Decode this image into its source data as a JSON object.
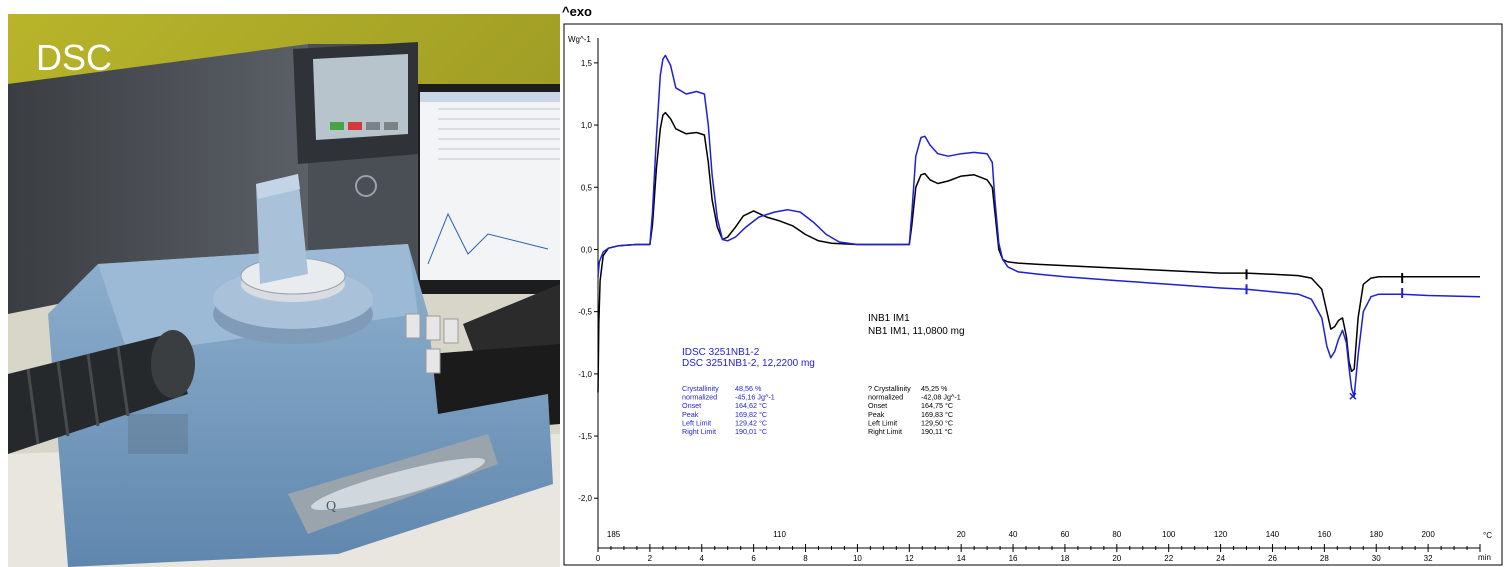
{
  "photo": {
    "label": "DSC",
    "instrument_badge": "Q"
  },
  "chart_data": {
    "type": "line",
    "title": "^exo",
    "ylabel": "Wg^-1",
    "xlabel": "min",
    "temp_unit_label": "°C",
    "xlim": [
      0,
      34
    ],
    "ylim": [
      -2.4,
      1.7
    ],
    "grid": false,
    "y_ticks": [
      1.5,
      1.0,
      0.5,
      0.0,
      -0.5,
      -1.0,
      -1.5,
      -2.0
    ],
    "y_tick_labels": [
      "1,5",
      "1,0",
      "0,5",
      "0,0",
      "-0,5",
      "-1,0",
      "-1,5",
      "-2,0"
    ],
    "x_ticks": [
      0,
      2,
      4,
      6,
      8,
      10,
      12,
      14,
      16,
      18,
      20,
      22,
      24,
      26,
      28,
      30,
      32
    ],
    "x_tick_labels": [
      "0",
      "2",
      "4",
      "6",
      "8",
      "10",
      "12",
      "14",
      "16",
      "18",
      "20",
      "22",
      "24",
      "26",
      "28",
      "30",
      "32"
    ],
    "temp_ticks": [
      {
        "x": 0.6,
        "label": "185"
      },
      {
        "x": 7.0,
        "label": "110"
      },
      {
        "x": 14.0,
        "label": "20"
      },
      {
        "x": 16.0,
        "label": "40"
      },
      {
        "x": 18.0,
        "label": "60"
      },
      {
        "x": 20.0,
        "label": "80"
      },
      {
        "x": 22.0,
        "label": "100"
      },
      {
        "x": 24.0,
        "label": "120"
      },
      {
        "x": 26.0,
        "label": "140"
      },
      {
        "x": 28.0,
        "label": "160"
      },
      {
        "x": 30.0,
        "label": "180"
      },
      {
        "x": 32.0,
        "label": "200"
      }
    ],
    "series": [
      {
        "name": "DSC 3251NB1-2, 12,2200 mg",
        "color": "#1f1fd6",
        "x": [
          0,
          0.05,
          0.2,
          0.4,
          0.8,
          1.5,
          2.0,
          2.1,
          2.25,
          2.4,
          2.5,
          2.6,
          2.8,
          3.0,
          3.4,
          3.8,
          4.1,
          4.25,
          4.4,
          4.6,
          4.8,
          5.0,
          5.3,
          5.7,
          6.2,
          6.8,
          7.3,
          7.8,
          8.3,
          8.8,
          9.3,
          10.0,
          11.0,
          12.0,
          12.1,
          12.25,
          12.45,
          12.6,
          12.8,
          13.1,
          13.5,
          14.0,
          14.5,
          15.0,
          15.2,
          15.3,
          15.45,
          15.6,
          15.8,
          16.2,
          17.0,
          18.0,
          20.0,
          22.0,
          24.0,
          25.0,
          26.0,
          27.0,
          27.5,
          27.9,
          28.1,
          28.25,
          28.4,
          28.55,
          28.7,
          28.85,
          28.95,
          29.05,
          29.15,
          29.3,
          29.5,
          29.8,
          30.1,
          30.5,
          31.0,
          32.0,
          34.0
        ],
        "y": [
          -0.22,
          -0.1,
          -0.02,
          0.01,
          0.03,
          0.04,
          0.04,
          0.3,
          0.9,
          1.4,
          1.53,
          1.56,
          1.48,
          1.3,
          1.25,
          1.27,
          1.25,
          1.0,
          0.6,
          0.25,
          0.08,
          0.07,
          0.1,
          0.18,
          0.26,
          0.3,
          0.32,
          0.3,
          0.22,
          0.12,
          0.06,
          0.04,
          0.04,
          0.04,
          0.3,
          0.75,
          0.9,
          0.91,
          0.84,
          0.77,
          0.75,
          0.77,
          0.78,
          0.77,
          0.7,
          0.4,
          0.05,
          -0.08,
          -0.14,
          -0.18,
          -0.2,
          -0.22,
          -0.25,
          -0.28,
          -0.31,
          -0.32,
          -0.34,
          -0.36,
          -0.4,
          -0.55,
          -0.78,
          -0.87,
          -0.82,
          -0.72,
          -0.65,
          -0.75,
          -0.95,
          -1.12,
          -1.18,
          -0.85,
          -0.5,
          -0.38,
          -0.36,
          -0.36,
          -0.36,
          -0.37,
          -0.38
        ]
      },
      {
        "name": "NB1 IM1, 11,0800 mg",
        "color": "#000000",
        "x": [
          0,
          0.03,
          0.08,
          0.2,
          0.4,
          0.8,
          1.5,
          2.0,
          2.1,
          2.25,
          2.4,
          2.5,
          2.6,
          2.8,
          3.0,
          3.4,
          3.8,
          4.1,
          4.25,
          4.4,
          4.6,
          4.8,
          5.0,
          5.3,
          5.6,
          6.0,
          6.5,
          7.0,
          7.5,
          8.0,
          8.5,
          9.0,
          10.0,
          11.0,
          12.0,
          12.1,
          12.25,
          12.45,
          12.6,
          12.8,
          13.1,
          13.5,
          14.0,
          14.5,
          15.0,
          15.2,
          15.3,
          15.45,
          15.6,
          15.8,
          16.2,
          17.0,
          18.0,
          20.0,
          22.0,
          24.0,
          25.0,
          26.0,
          27.0,
          27.5,
          27.9,
          28.1,
          28.25,
          28.4,
          28.55,
          28.7,
          28.85,
          28.95,
          29.05,
          29.15,
          29.3,
          29.5,
          29.8,
          30.1,
          30.5,
          31.0,
          32.0,
          34.0
        ],
        "y": [
          -1.15,
          -0.6,
          -0.25,
          -0.05,
          0.01,
          0.03,
          0.04,
          0.04,
          0.2,
          0.65,
          0.97,
          1.08,
          1.1,
          1.05,
          0.97,
          0.93,
          0.94,
          0.92,
          0.7,
          0.4,
          0.18,
          0.08,
          0.1,
          0.18,
          0.27,
          0.31,
          0.26,
          0.23,
          0.19,
          0.12,
          0.07,
          0.05,
          0.04,
          0.04,
          0.04,
          0.2,
          0.5,
          0.6,
          0.61,
          0.56,
          0.53,
          0.55,
          0.59,
          0.6,
          0.56,
          0.5,
          0.3,
          0.0,
          -0.08,
          -0.1,
          -0.11,
          -0.12,
          -0.13,
          -0.15,
          -0.17,
          -0.19,
          -0.19,
          -0.2,
          -0.21,
          -0.23,
          -0.32,
          -0.5,
          -0.64,
          -0.62,
          -0.57,
          -0.55,
          -0.7,
          -0.9,
          -0.98,
          -0.96,
          -0.55,
          -0.28,
          -0.23,
          -0.22,
          -0.22,
          -0.22,
          -0.22,
          -0.22
        ]
      }
    ],
    "marker_pairs": [
      {
        "x": [
          25,
          31
        ],
        "y_blue": [
          -0.32,
          -0.35
        ],
        "y_black": [
          -0.2,
          -0.23
        ]
      }
    ],
    "peak_markers": [
      {
        "x": 29.1,
        "y": -1.18,
        "symbol": "x",
        "color": "#1f1fd6"
      }
    ],
    "annotations": {
      "blue": {
        "title": "IDSC 3251NB1-2",
        "subtitle": "DSC 3251NB1-2, 12,2200 mg",
        "rows": [
          {
            "label": "Crystallinity",
            "value": "48,56 %"
          },
          {
            "label": "  normalized",
            "value": "-45,16 Jg^-1"
          },
          {
            "label": "Onset",
            "value": "164,62 °C"
          },
          {
            "label": "Peak",
            "value": "169,82 °C"
          },
          {
            "label": "Left Limit",
            "value": "129,42 °C"
          },
          {
            "label": "Right Limit",
            "value": "190,01 °C"
          }
        ]
      },
      "black": {
        "title": "INB1 IM1",
        "subtitle": "NB1 IM1, 11,0800 mg",
        "rows": [
          {
            "label": "? Crystallinity",
            "value": "45,25 %"
          },
          {
            "label": "  normalized",
            "value": "-42,08 Jg^-1"
          },
          {
            "label": "Onset",
            "value": "164,75 °C"
          },
          {
            "label": "Peak",
            "value": "169,83 °C"
          },
          {
            "label": "Left Limit",
            "value": "129,50 °C"
          },
          {
            "label": "Right Limit",
            "value": "190,11 °C"
          }
        ]
      }
    }
  }
}
